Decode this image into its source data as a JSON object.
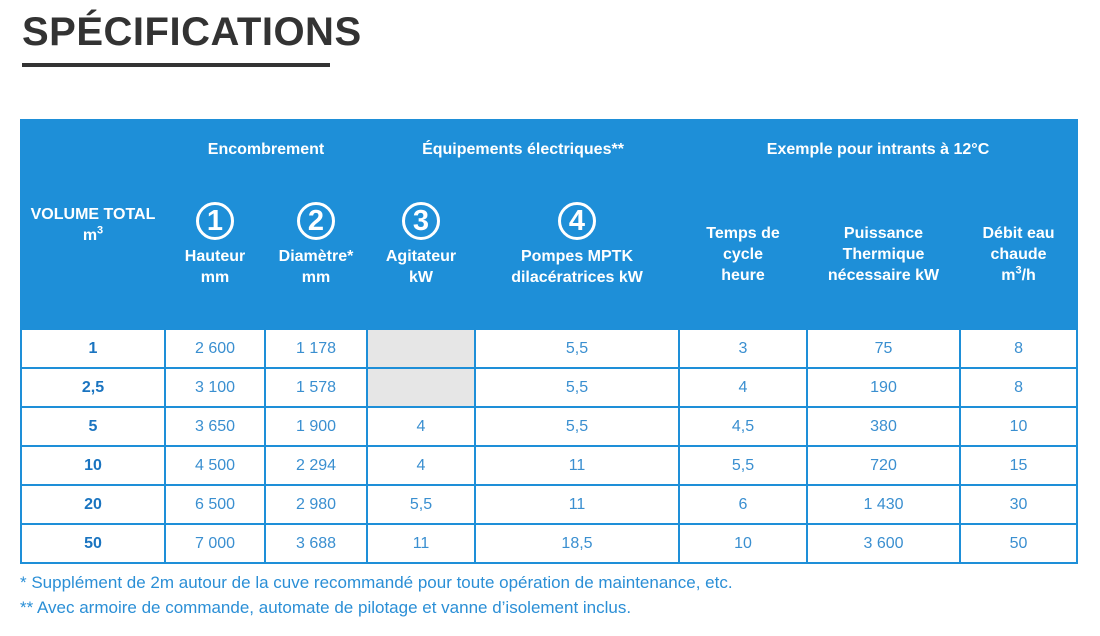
{
  "title": "SPÉCIFICATIONS",
  "table": {
    "volume_header": "VOLUME TOTAL",
    "volume_unit_base": "m",
    "volume_unit_sup": "3",
    "groups": {
      "encombrement": "Encombrement",
      "equipements": "Équipements électriques**",
      "exemple": "Exemple pour intrants à 12°C"
    },
    "columns": {
      "hauteur": {
        "num": "1",
        "line1": "Hauteur",
        "line2": "mm"
      },
      "diametre": {
        "num": "2",
        "line1": "Diamètre*",
        "line2": "mm"
      },
      "agitateur": {
        "num": "3",
        "line1": "Agitateur",
        "line2": "kW"
      },
      "pompes": {
        "num": "4",
        "line1": "Pompes MPTK",
        "line2": "dilacératrices kW"
      },
      "temps": {
        "line1": "Temps de",
        "line2": "cycle",
        "line3": "heure"
      },
      "puissance": {
        "line1": "Puissance",
        "line2": "Thermique",
        "line3": "nécessaire kW"
      },
      "debit": {
        "line1": "Débit eau",
        "line2": "chaude",
        "line3_base": "m",
        "line3_sup": "3",
        "line3_tail": "/h"
      }
    },
    "rows": [
      {
        "volume": "1",
        "hauteur": "2 600",
        "diametre": "1 178",
        "agitateur": "",
        "pompes": "5,5",
        "temps": "3",
        "puissance": "75",
        "debit": "8"
      },
      {
        "volume": "2,5",
        "hauteur": "3 100",
        "diametre": "1 578",
        "agitateur": "",
        "pompes": "5,5",
        "temps": "4",
        "puissance": "190",
        "debit": "8"
      },
      {
        "volume": "5",
        "hauteur": "3 650",
        "diametre": "1 900",
        "agitateur": "4",
        "pompes": "5,5",
        "temps": "4,5",
        "puissance": "380",
        "debit": "10"
      },
      {
        "volume": "10",
        "hauteur": "4 500",
        "diametre": "2 294",
        "agitateur": "4",
        "pompes": "11",
        "temps": "5,5",
        "puissance": "720",
        "debit": "15"
      },
      {
        "volume": "20",
        "hauteur": "6 500",
        "diametre": "2 980",
        "agitateur": "5,5",
        "pompes": "11",
        "temps": "6",
        "puissance": "1 430",
        "debit": "30"
      },
      {
        "volume": "50",
        "hauteur": "7 000",
        "diametre": "3 688",
        "agitateur": "11",
        "pompes": "18,5",
        "temps": "10",
        "puissance": "3 600",
        "debit": "50"
      }
    ]
  },
  "notes": [
    "* Supplément de 2m autour de la cuve recommandé pour toute opération de maintenance, etc.",
    "** Avec armoire de commande, automate de pilotage et vanne d’isolement inclus."
  ],
  "colors": {
    "header_blue": "#1e8fd8",
    "text_blue": "#3a8fd0",
    "title_gray": "#333333",
    "empty_cell": "#e6e6e6"
  }
}
